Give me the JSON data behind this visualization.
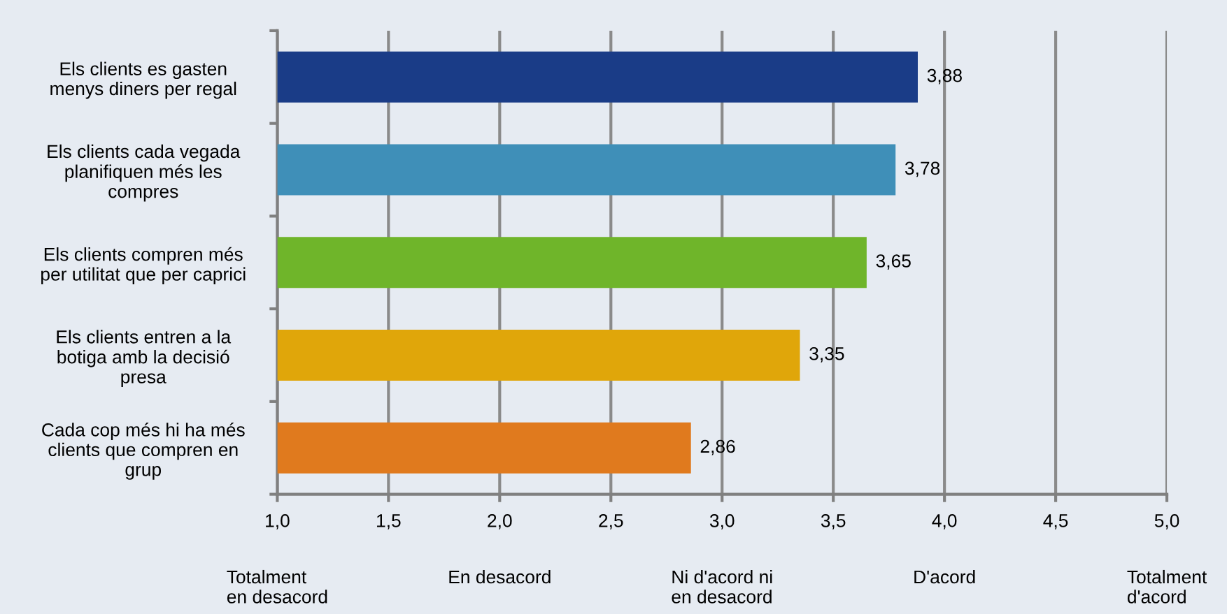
{
  "chart_data": {
    "type": "bar",
    "orientation": "horizontal",
    "categories": [
      "Els clients es gasten\nmenys diners per regal",
      "Els clients cada vegada\nplanifiquen més les\ncompres",
      "Els clients compren més\nper utilitat que per caprici",
      "Els clients entren a la\nbotiga amb la decisió\npresa",
      "Cada cop més hi ha més\nclients que compren en\ngrup"
    ],
    "values": [
      3.88,
      3.78,
      3.65,
      3.35,
      2.86
    ],
    "value_labels": [
      "3,88",
      "3,78",
      "3,65",
      "3,35",
      "2,86"
    ],
    "colors": [
      "#1a3c87",
      "#3f8fb8",
      "#6fb52a",
      "#e0a60a",
      "#e07a1e"
    ],
    "xlim": [
      1,
      5
    ],
    "xticks": [
      {
        "value": 1,
        "label": "1,0"
      },
      {
        "value": 1.5,
        "label": "1,5"
      },
      {
        "value": 2,
        "label": "2,0"
      },
      {
        "value": 2.5,
        "label": "2,5"
      },
      {
        "value": 3,
        "label": "3,0"
      },
      {
        "value": 3.5,
        "label": "3,5"
      },
      {
        "value": 4,
        "label": "4,0"
      },
      {
        "value": 4.5,
        "label": "4,5"
      },
      {
        "value": 5,
        "label": "5,0"
      }
    ],
    "grid": "x",
    "annotations": [
      "Totalment\nen desacord",
      "En desacord",
      "Ni d'acord ni\nen desacord",
      "D'acord",
      "Totalment\nd'acord"
    ]
  }
}
